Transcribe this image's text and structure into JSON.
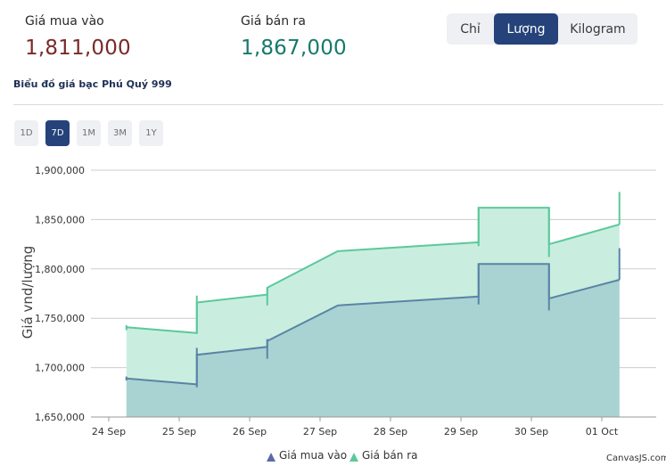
{
  "prices": {
    "buy_label": "Giá mua vào",
    "buy_value": "1,811,000",
    "sell_label": "Giá bán ra",
    "sell_value": "1,867,000"
  },
  "units": [
    {
      "label": "Chỉ",
      "active": false
    },
    {
      "label": "Lượng",
      "active": true
    },
    {
      "label": "Kilogram",
      "active": false
    }
  ],
  "subtitle": "Biểu đồ giá bạc Phú Quý 999",
  "ranges": [
    {
      "label": "1D",
      "active": false
    },
    {
      "label": "7D",
      "active": true
    },
    {
      "label": "1M",
      "active": false
    },
    {
      "label": "3M",
      "active": false
    },
    {
      "label": "1Y",
      "active": false
    }
  ],
  "colors": {
    "buy_line": "#5a84a6",
    "buy_fill": "#a9d3d2",
    "sell_line": "#5bc99a",
    "sell_fill": "#c9eedf",
    "active_button": "#25427a"
  },
  "chart_data": {
    "type": "area",
    "ylabel": "Giá vnd/lượng",
    "ylim": [
      1650000,
      1900000
    ],
    "y_ticks": [
      "1,650,000",
      "1,700,000",
      "1,750,000",
      "1,800,000",
      "1,850,000",
      "1,900,000"
    ],
    "x_ticks": [
      "24 Sep",
      "25 Sep",
      "26 Sep",
      "27 Sep",
      "28 Sep",
      "29 Sep",
      "30 Sep",
      "01 Oct"
    ],
    "grid": true,
    "legend": "bottom-center",
    "credit": "CanvasJS.com",
    "series": [
      {
        "name": "Giá bán ra",
        "color": "#5bc99a",
        "points": [
          {
            "x": "24 Sep 06:00",
            "y": 1741000
          },
          {
            "x": "25 Sep 06:00",
            "y": 1735000
          },
          {
            "x": "25 Sep 06:00",
            "y": 1766000
          },
          {
            "x": "26 Sep 06:00",
            "y": 1774000
          },
          {
            "x": "26 Sep 06:00",
            "y": 1781000
          },
          {
            "x": "27 Sep 06:00",
            "y": 1818000
          },
          {
            "x": "29 Sep 06:00",
            "y": 1827000
          },
          {
            "x": "29 Sep 06:00",
            "y": 1862000
          },
          {
            "x": "30 Sep 06:00",
            "y": 1862000
          },
          {
            "x": "30 Sep 06:00",
            "y": 1825000
          },
          {
            "x": "01 Oct 06:00",
            "y": 1845000
          }
        ]
      },
      {
        "name": "Giá mua vào",
        "color": "#5a84a6",
        "points": [
          {
            "x": "24 Sep 06:00",
            "y": 1689000
          },
          {
            "x": "25 Sep 06:00",
            "y": 1683000
          },
          {
            "x": "25 Sep 06:00",
            "y": 1713000
          },
          {
            "x": "26 Sep 06:00",
            "y": 1721000
          },
          {
            "x": "26 Sep 06:00",
            "y": 1727000
          },
          {
            "x": "27 Sep 06:00",
            "y": 1763000
          },
          {
            "x": "29 Sep 06:00",
            "y": 1772000
          },
          {
            "x": "29 Sep 06:00",
            "y": 1805000
          },
          {
            "x": "30 Sep 06:00",
            "y": 1805000
          },
          {
            "x": "30 Sep 06:00",
            "y": 1770000
          },
          {
            "x": "01 Oct 06:00",
            "y": 1789000
          }
        ]
      }
    ],
    "tick_marks": [
      {
        "series": "Giá bán ra",
        "x": "24 Sep 06:00",
        "low": 1738000,
        "high": 1743000
      },
      {
        "series": "Giá bán ra",
        "x": "25 Sep 06:00",
        "low": 1735000,
        "high": 1773000
      },
      {
        "series": "Giá bán ra",
        "x": "26 Sep 06:00",
        "low": 1763000,
        "high": 1781000
      },
      {
        "series": "Giá bán ra",
        "x": "29 Sep 06:00",
        "low": 1823000,
        "high": 1862000
      },
      {
        "series": "Giá bán ra",
        "x": "30 Sep 06:00",
        "low": 1812000,
        "high": 1862000
      },
      {
        "series": "Giá bán ra",
        "x": "01 Oct 06:00",
        "low": 1845000,
        "high": 1878000
      },
      {
        "series": "Giá mua vào",
        "x": "24 Sep 06:00",
        "low": 1687000,
        "high": 1691000
      },
      {
        "series": "Giá mua vào",
        "x": "25 Sep 06:00",
        "low": 1680000,
        "high": 1720000
      },
      {
        "series": "Giá mua vào",
        "x": "26 Sep 06:00",
        "low": 1709000,
        "high": 1729000
      },
      {
        "series": "Giá mua vào",
        "x": "29 Sep 06:00",
        "low": 1764000,
        "high": 1805000
      },
      {
        "series": "Giá mua vào",
        "x": "30 Sep 06:00",
        "low": 1758000,
        "high": 1805000
      },
      {
        "series": "Giá mua vào",
        "x": "01 Oct 06:00",
        "low": 1789000,
        "high": 1821000
      }
    ]
  }
}
